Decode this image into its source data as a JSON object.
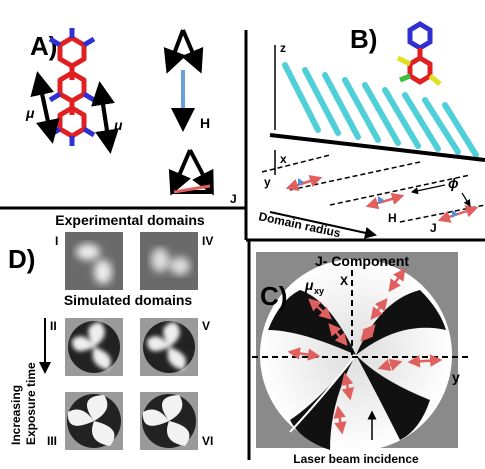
{
  "panel_a": {
    "label": "A)",
    "mu_left": "μ",
    "mu_right": "μ",
    "h": "H",
    "j": "J"
  },
  "panel_b": {
    "label": "B)",
    "z": "z",
    "x": "x",
    "y": "y",
    "domain_radius": "Domain radius",
    "h": "H",
    "j": "J",
    "phi": "ϕ"
  },
  "panel_d": {
    "label": "D)",
    "experimental": "Experimental domains",
    "simulated": "Simulated domains",
    "i": "I",
    "iv": "IV",
    "ii": "II",
    "v": "V",
    "iii": "III",
    "vi": "VI",
    "axis_line1": "Increasing",
    "axis_line2": "Exposure time"
  },
  "panel_c": {
    "label": "C)",
    "title": "J- Component",
    "mu": "μ",
    "mu_sub": "xy",
    "x": "X",
    "y": "y",
    "caption": "Laser beam incidence"
  }
}
